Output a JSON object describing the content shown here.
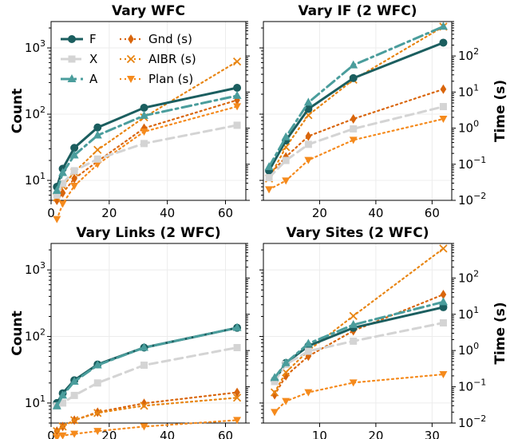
{
  "chart_data": [
    {
      "type": "line",
      "title": "Vary WFC",
      "ylabel_left": "Count",
      "ylabel_right": "",
      "xlim": [
        0,
        67
      ],
      "xticks": [
        0,
        20,
        40,
        60
      ],
      "ylim_count": [
        5,
        2500
      ],
      "ylim_time": [
        0.01,
        900
      ],
      "legend": "upper-left",
      "grid": true,
      "x": [
        2,
        4,
        8,
        16,
        32,
        64
      ],
      "series": [
        {
          "name": "F",
          "axis": "count",
          "style": "F",
          "values": [
            8,
            15,
            31,
            63,
            125,
            250
          ]
        },
        {
          "name": "X",
          "axis": "count",
          "style": "X",
          "values": [
            6,
            9,
            14,
            21,
            36,
            68
          ]
        },
        {
          "name": "A",
          "axis": "count",
          "style": "A",
          "values": [
            7,
            13,
            24,
            48,
            95,
            190
          ]
        },
        {
          "name": "Gnd (s)",
          "axis": "time",
          "style": "G",
          "values": [
            0.01,
            0.016,
            0.04,
            0.12,
            1.0,
            6.0
          ]
        },
        {
          "name": "AIBR (s)",
          "axis": "time",
          "style": "R",
          "values": [
            0.012,
            0.025,
            0.06,
            0.25,
            2.0,
            70
          ]
        },
        {
          "name": "Plan (s)",
          "axis": "time",
          "style": "P",
          "values": [
            0.003,
            0.008,
            0.025,
            0.1,
            0.8,
            4.0
          ]
        }
      ]
    },
    {
      "type": "line",
      "title": "Vary IF (2 WFC)",
      "ylabel_left": "",
      "ylabel_right": "Time (s)",
      "xlim": [
        0,
        67
      ],
      "xticks": [
        20,
        40,
        60
      ],
      "ylim_count": [
        5,
        2500
      ],
      "ylim_time": [
        0.01,
        900
      ],
      "legend": "",
      "grid": true,
      "x": [
        2,
        8,
        16,
        32,
        64
      ],
      "series": [
        {
          "name": "F",
          "axis": "count",
          "style": "F",
          "values": [
            14,
            40,
            120,
            350,
            1200
          ]
        },
        {
          "name": "X",
          "axis": "count",
          "style": "X",
          "values": [
            11,
            20,
            35,
            60,
            130
          ]
        },
        {
          "name": "A",
          "axis": "count",
          "style": "A",
          "values": [
            16,
            45,
            150,
            550,
            2100
          ]
        },
        {
          "name": "Gnd (s)",
          "axis": "time",
          "style": "G",
          "values": [
            0.05,
            0.16,
            0.6,
            1.8,
            12
          ]
        },
        {
          "name": "AIBR (s)",
          "axis": "time",
          "style": "R",
          "values": [
            0.04,
            0.3,
            2.3,
            22,
            650
          ]
        },
        {
          "name": "Plan (s)",
          "axis": "time",
          "style": "P",
          "values": [
            0.02,
            0.035,
            0.13,
            0.47,
            1.8
          ]
        }
      ]
    },
    {
      "type": "line",
      "title": "Vary Links (2 WFC)",
      "ylabel_left": "Count",
      "ylabel_right": "",
      "xlim": [
        0,
        67
      ],
      "xticks": [
        0,
        20,
        40,
        60
      ],
      "ylim_count": [
        5,
        2500
      ],
      "ylim_time": [
        0.01,
        900
      ],
      "legend": "",
      "grid": true,
      "x": [
        2,
        4,
        8,
        16,
        32,
        64
      ],
      "series": [
        {
          "name": "F",
          "axis": "count",
          "style": "F",
          "values": [
            10,
            14,
            22,
            38,
            68,
            135
          ]
        },
        {
          "name": "X",
          "axis": "count",
          "style": "X",
          "values": [
            9,
            10,
            13,
            20,
            37,
            68
          ]
        },
        {
          "name": "A",
          "axis": "count",
          "style": "A",
          "values": [
            9,
            13,
            21,
            37,
            68,
            135
          ]
        },
        {
          "name": "Gnd (s)",
          "axis": "time",
          "style": "G",
          "values": [
            0.006,
            0.008,
            0.012,
            0.02,
            0.035,
            0.07
          ]
        },
        {
          "name": "AIBR (s)",
          "axis": "time",
          "style": "R",
          "values": [
            0.006,
            0.008,
            0.012,
            0.019,
            0.03,
            0.05
          ]
        },
        {
          "name": "Plan (s)",
          "axis": "time",
          "style": "P",
          "values": [
            0.004,
            0.0045,
            0.005,
            0.006,
            0.008,
            0.012
          ]
        }
      ]
    },
    {
      "type": "line",
      "title": "Vary Sites (2 WFC)",
      "ylabel_left": "",
      "ylabel_right": "Time (s)",
      "xlim": [
        0,
        33.5
      ],
      "xticks": [
        10,
        20,
        30
      ],
      "ylim_count": [
        5,
        2500
      ],
      "ylim_time": [
        0.01,
        900
      ],
      "legend": "",
      "grid": true,
      "x": [
        2,
        4,
        8,
        16,
        32
      ],
      "series": [
        {
          "name": "F",
          "axis": "count",
          "style": "F",
          "values": [
            22,
            40,
            72,
            135,
            275
          ]
        },
        {
          "name": "X",
          "axis": "count",
          "style": "X",
          "values": [
            21,
            38,
            60,
            85,
            160
          ]
        },
        {
          "name": "A",
          "axis": "count",
          "style": "A",
          "values": [
            24,
            40,
            78,
            150,
            330
          ]
        },
        {
          "name": "Gnd (s)",
          "axis": "time",
          "style": "G",
          "values": [
            0.06,
            0.2,
            0.7,
            3.5,
            35
          ]
        },
        {
          "name": "AIBR (s)",
          "axis": "time",
          "style": "R",
          "values": [
            0.07,
            0.25,
            1.0,
            9.0,
            650
          ]
        },
        {
          "name": "Plan (s)",
          "axis": "time",
          "style": "P",
          "values": [
            0.02,
            0.04,
            0.07,
            0.13,
            0.22
          ]
        }
      ]
    }
  ],
  "styles": {
    "F": {
      "color": "#1b5e5f",
      "dash": "",
      "marker": "circle",
      "width": 3
    },
    "X": {
      "color": "#d4d4d4",
      "dash": "10,6",
      "marker": "square",
      "width": 3
    },
    "A": {
      "color": "#4a9d9c",
      "dash": "12,5,3,5",
      "marker": "triangle",
      "width": 3
    },
    "G": {
      "color": "#d9650b",
      "dash": "2,4",
      "marker": "diamond",
      "width": 2.2
    },
    "R": {
      "color": "#e88512",
      "dash": "2,4",
      "marker": "x",
      "width": 2.2
    },
    "P": {
      "color": "#f58a1c",
      "dash": "2,4",
      "marker": "tridown",
      "width": 2.2
    }
  }
}
